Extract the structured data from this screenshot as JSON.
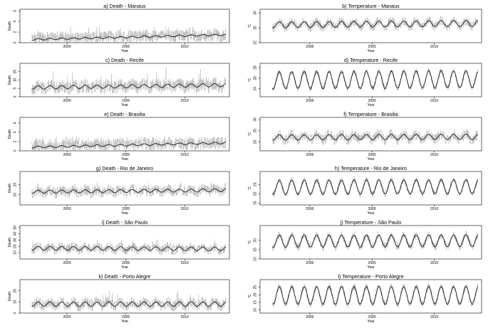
{
  "chart_data": [
    {
      "id": "a",
      "type": "line",
      "title": "a) Death - Manaus",
      "xlabel": "Year",
      "ylabel": "Death",
      "xlim": [
        1996,
        2013.8
      ],
      "ylim": [
        0,
        6.3
      ],
      "xticks": [
        2000,
        2005,
        2010
      ],
      "yticks": [
        0,
        2,
        4,
        6
      ],
      "series": [
        {
          "kind": "raw",
          "base": 0.9,
          "noise": 1.2,
          "season": 0.1,
          "trend": 0.5,
          "spikes": 1.0,
          "cap": 3
        },
        {
          "kind": "smooth",
          "base": 0.6,
          "season": 0.15,
          "trend": 0.9,
          "period": 1.0
        }
      ]
    },
    {
      "id": "b",
      "type": "line",
      "title": "b) Temperature - Manaus",
      "xlabel": "Year",
      "ylabel": "°C",
      "xlim": [
        1996,
        2013.8
      ],
      "ylim": [
        22,
        31
      ],
      "xticks": [
        2000,
        2005,
        2010
      ],
      "yticks": [
        22,
        26,
        30
      ],
      "series": [
        {
          "kind": "raw",
          "base": 26.8,
          "noise": 1.3,
          "season": 0.8,
          "trend": 0.4,
          "spikes": 0
        },
        {
          "kind": "smooth",
          "base": 26.8,
          "season": 0.8,
          "trend": 0.4,
          "period": 1.0
        }
      ]
    },
    {
      "id": "c",
      "type": "line",
      "title": "c) Death - Recife",
      "xlabel": "Year",
      "ylabel": "Death",
      "xlim": [
        1996,
        2013.8
      ],
      "ylim": [
        0,
        20
      ],
      "xticks": [
        2000,
        2005,
        2010
      ],
      "yticks": [
        0,
        5,
        10,
        15
      ],
      "series": [
        {
          "kind": "raw",
          "base": 5.5,
          "noise": 4.0,
          "season": 1.0,
          "trend": 1.5,
          "spikes": 1.0
        },
        {
          "kind": "smooth",
          "base": 5.5,
          "season": 1.0,
          "trend": 1.5,
          "period": 1.0
        }
      ]
    },
    {
      "id": "d",
      "type": "line",
      "title": "d) Temperature - Recife",
      "xlabel": "Year",
      "ylabel": "°C",
      "xlim": [
        1996,
        2013.8
      ],
      "ylim": [
        22.5,
        28.8
      ],
      "xticks": [
        2000,
        2005,
        2010
      ],
      "yticks": [
        22,
        24,
        26,
        28
      ],
      "series": [
        {
          "kind": "raw",
          "base": 25.6,
          "noise": 0.6,
          "season": 1.6,
          "trend": 0.2,
          "spikes": 0
        },
        {
          "kind": "smooth",
          "base": 25.6,
          "season": 1.6,
          "trend": 0.2,
          "period": 1.0
        }
      ]
    },
    {
      "id": "e",
      "type": "line",
      "title": "e) Death - Brasilia",
      "xlabel": "Year",
      "ylabel": "Death",
      "xlim": [
        1996,
        2013.8
      ],
      "ylim": [
        0,
        7.2
      ],
      "xticks": [
        2000,
        2005,
        2010
      ],
      "yticks": [
        0,
        2,
        4,
        6
      ],
      "series": [
        {
          "kind": "raw",
          "base": 1.1,
          "noise": 1.4,
          "season": 0.1,
          "trend": 0.6,
          "spikes": 1.0,
          "cap": 3
        },
        {
          "kind": "smooth",
          "base": 0.8,
          "season": 0.2,
          "trend": 0.9,
          "period": 1.0
        }
      ]
    },
    {
      "id": "f",
      "type": "line",
      "title": "f) Temperature - Brasilia",
      "xlabel": "Year",
      "ylabel": "°C",
      "xlim": [
        1996,
        2013.8
      ],
      "ylim": [
        16,
        31
      ],
      "xticks": [
        2000,
        2005,
        2010
      ],
      "yticks": [
        20,
        25,
        30
      ],
      "series": [
        {
          "kind": "raw",
          "base": 22,
          "noise": 2.5,
          "season": 1.2,
          "trend": 0.3,
          "spikes": 0
        },
        {
          "kind": "smooth",
          "base": 22,
          "season": 1.2,
          "trend": 0.3,
          "period": 1.0
        }
      ]
    },
    {
      "id": "g",
      "type": "line",
      "title": "g) Death - Rio de Janeiro",
      "xlabel": "Year",
      "ylabel": "Death",
      "xlim": [
        1996,
        2013.8
      ],
      "ylim": [
        0,
        33
      ],
      "xticks": [
        2000,
        2005,
        2010
      ],
      "yticks": [
        10,
        20
      ],
      "series": [
        {
          "kind": "raw",
          "base": 13,
          "noise": 5.5,
          "season": 1.5,
          "trend": 1.5,
          "spikes": 0.5
        },
        {
          "kind": "smooth",
          "base": 13,
          "season": 1.5,
          "trend": 1.5,
          "period": 1.0
        }
      ]
    },
    {
      "id": "h",
      "type": "line",
      "title": "h) Temperature - Rio de Janeiro",
      "xlabel": "Year",
      "ylabel": "°C",
      "xlim": [
        1996,
        2013.8
      ],
      "ylim": [
        14,
        32
      ],
      "xticks": [
        2000,
        2005,
        2010
      ],
      "yticks": [
        15,
        20,
        25
      ],
      "series": [
        {
          "kind": "raw",
          "base": 23.5,
          "noise": 1.8,
          "season": 3.8,
          "trend": 0.3,
          "spikes": 0
        },
        {
          "kind": "smooth",
          "base": 23.5,
          "season": 3.8,
          "trend": 0.3,
          "period": 1.0
        }
      ]
    },
    {
      "id": "i",
      "type": "line",
      "title": "i) Death - São Paulo",
      "xlabel": "Year",
      "ylabel": "Death",
      "xlim": [
        1996,
        2013.8
      ],
      "ylim": [
        0,
        53
      ],
      "xticks": [
        2000,
        2005,
        2010
      ],
      "yticks": [
        10,
        20,
        30,
        40,
        50
      ],
      "series": [
        {
          "kind": "raw",
          "base": 17,
          "noise": 8.0,
          "season": 3.0,
          "trend": -1,
          "spikes": 0.5
        },
        {
          "kind": "smooth",
          "base": 17,
          "season": 3.0,
          "trend": -1,
          "period": 1.0
        }
      ]
    },
    {
      "id": "j",
      "type": "line",
      "title": "j) Temperature - São Paulo",
      "xlabel": "Year",
      "ylabel": "°C",
      "xlim": [
        1996,
        2013.8
      ],
      "ylim": [
        10,
        28
      ],
      "xticks": [
        2000,
        2005,
        2010
      ],
      "yticks": [
        10,
        15,
        20
      ],
      "series": [
        {
          "kind": "raw",
          "base": 19.5,
          "noise": 2.2,
          "season": 3.2,
          "trend": 0.3,
          "spikes": 0
        },
        {
          "kind": "smooth",
          "base": 19.5,
          "season": 3.2,
          "trend": 0.3,
          "period": 1.0
        }
      ]
    },
    {
      "id": "k",
      "type": "line",
      "title": "k) Death - Porto Alegre",
      "xlabel": "Year",
      "ylabel": "Death",
      "xlim": [
        1996,
        2013.8
      ],
      "ylim": [
        0,
        30
      ],
      "xticks": [
        2000,
        2005,
        2010
      ],
      "yticks": [
        0,
        10,
        20
      ],
      "series": [
        {
          "kind": "raw",
          "base": 8,
          "noise": 5.0,
          "season": 2.0,
          "trend": 0,
          "spikes": 0.8
        },
        {
          "kind": "smooth",
          "base": 8,
          "season": 2.0,
          "trend": 0,
          "period": 1.0
        }
      ]
    },
    {
      "id": "l",
      "type": "line",
      "title": "l) Temperature - Porto Alegre",
      "xlabel": "Year",
      "ylabel": "°C",
      "xlim": [
        1996,
        2013.8
      ],
      "ylim": [
        8,
        30
      ],
      "xticks": [
        2000,
        2005,
        2010
      ],
      "yticks": [
        10,
        15,
        20,
        25
      ],
      "series": [
        {
          "kind": "raw",
          "base": 19.5,
          "noise": 2.3,
          "season": 5.8,
          "trend": 0.2,
          "spikes": 0
        },
        {
          "kind": "smooth",
          "base": 19.5,
          "season": 5.8,
          "trend": 0.2,
          "period": 1.0
        }
      ]
    }
  ]
}
